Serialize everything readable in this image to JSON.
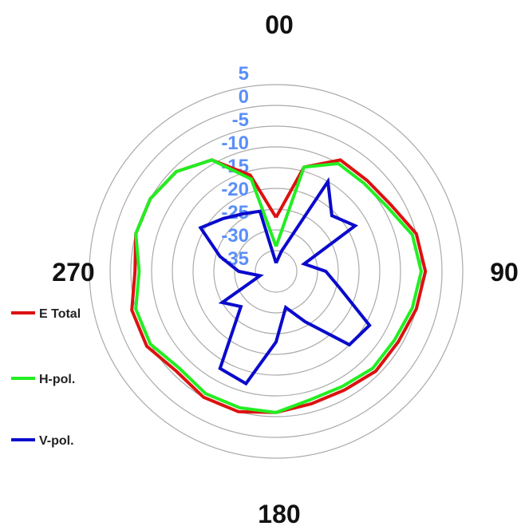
{
  "chart_data": {
    "type": "polar-line",
    "title": "",
    "angle_labels": [
      {
        "angle": 0,
        "text": "00"
      },
      {
        "angle": 90,
        "text": "90"
      },
      {
        "angle": 180,
        "text": "180"
      },
      {
        "angle": 270,
        "text": "270"
      }
    ],
    "radial_ticks": [
      "5",
      "0",
      "-5",
      "-10",
      "-15",
      "-20",
      "-25",
      "-30",
      "-35"
    ],
    "radial_range": [
      -40,
      5
    ],
    "grid": true,
    "legend_position": "left",
    "angles": [
      0,
      15,
      30,
      45,
      60,
      75,
      90,
      105,
      120,
      135,
      150,
      165,
      180,
      195,
      210,
      225,
      240,
      255,
      270,
      285,
      300,
      315,
      330,
      345
    ],
    "series": [
      {
        "name": "E Total",
        "color": "#dd1111",
        "values": [
          -27,
          -14,
          -9,
          -9,
          -8,
          -5,
          -4,
          -5,
          -6,
          -6,
          -7,
          -7,
          -6,
          -5,
          -5,
          -6,
          -4,
          -4,
          -6,
          -5,
          -5,
          -6,
          -9,
          -16
        ]
      },
      {
        "name": "H-pol.",
        "color": "#22ee22",
        "values": [
          -34,
          -14,
          -10,
          -10,
          -9,
          -6,
          -5,
          -6,
          -7,
          -7,
          -8,
          -8,
          -6,
          -6,
          -6,
          -7,
          -5,
          -5,
          -7,
          -5,
          -5,
          -6,
          -9,
          -17
        ]
      },
      {
        "name": "V-pol.",
        "color": "#0a0acc",
        "values": [
          -38,
          -35,
          -15,
          -21,
          -18,
          -33,
          -28,
          -24,
          -14,
          -15,
          -26,
          -31,
          -23,
          -12,
          -13,
          -28,
          -25,
          -36,
          -31,
          -26,
          -19,
          -22,
          -24,
          -25
        ]
      }
    ]
  }
}
